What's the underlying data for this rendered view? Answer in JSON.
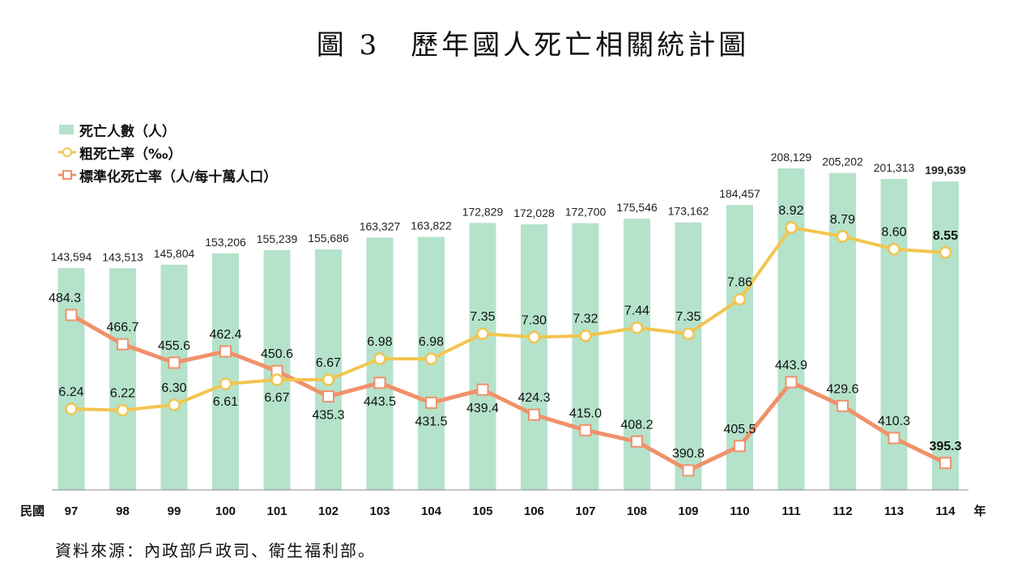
{
  "title": "圖 3　歷年國人死亡相關統計圖",
  "source": "資料來源：內政部戶政司、衛生福利部。",
  "chart_data": {
    "type": "bar",
    "x_prefix": "民國",
    "x_suffix": "年",
    "categories": [
      "97",
      "98",
      "99",
      "100",
      "101",
      "102",
      "103",
      "104",
      "105",
      "106",
      "107",
      "108",
      "109",
      "110",
      "111",
      "112",
      "113",
      "114"
    ],
    "series": [
      {
        "name": "死亡人數（人）",
        "type": "bar",
        "color": "#b5e2cb",
        "values": [
          143594,
          143513,
          145804,
          153206,
          155239,
          155686,
          163327,
          163822,
          172829,
          172028,
          172700,
          175546,
          173162,
          184457,
          208129,
          205202,
          201313,
          199639
        ],
        "labels": [
          "143,594",
          "143,513",
          "145,804",
          "153,206",
          "155,239",
          "155,686",
          "163,327",
          "163,822",
          "172,829",
          "172,028",
          "172,700",
          "175,546",
          "173,162",
          "184,457",
          "208,129",
          "205,202",
          "201,313",
          "199,639"
        ]
      },
      {
        "name": "粗死亡率（‰）",
        "type": "line",
        "color": "#f2c54f",
        "values": [
          6.24,
          6.22,
          6.3,
          6.61,
          6.67,
          6.67,
          6.98,
          6.98,
          7.35,
          7.3,
          7.32,
          7.44,
          7.35,
          7.86,
          8.92,
          8.79,
          8.6,
          8.55
        ],
        "labels": [
          "6.24",
          "6.22",
          "6.30",
          "6.61",
          "6.67",
          "6.67",
          "6.98",
          "6.98",
          "7.35",
          "7.30",
          "7.32",
          "7.44",
          "7.35",
          "7.86",
          "8.92",
          "8.79",
          "8.60",
          "8.55"
        ]
      },
      {
        "name": "標準化死亡率（人/每十萬人口）",
        "type": "line",
        "color": "#f0916a",
        "values": [
          484.3,
          466.7,
          455.6,
          462.4,
          450.6,
          435.3,
          443.5,
          431.5,
          439.4,
          424.3,
          415.0,
          408.2,
          390.8,
          405.5,
          443.9,
          429.6,
          410.3,
          395.3
        ],
        "labels": [
          "484.3",
          "466.7",
          "455.6",
          "462.4",
          "450.6",
          "435.3",
          "443.5",
          "431.5",
          "439.4",
          "424.3",
          "415.0",
          "408.2",
          "390.8",
          "405.5",
          "443.9",
          "429.6",
          "410.3",
          "395.3"
        ]
      }
    ],
    "legend_position": "top-left",
    "grid": false
  }
}
